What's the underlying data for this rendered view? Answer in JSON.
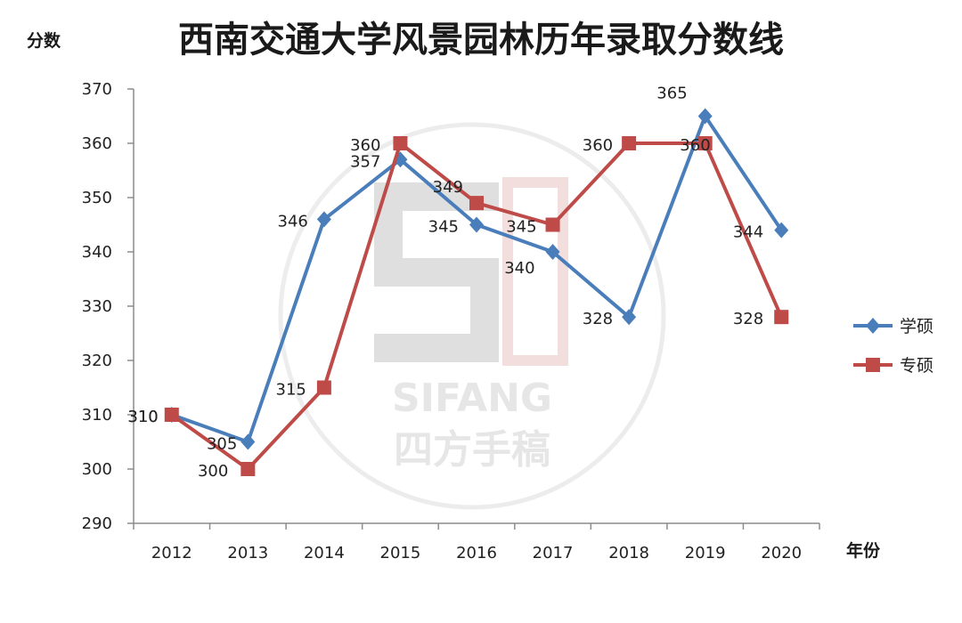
{
  "chart_data": {
    "type": "line",
    "title": "西南交通大学风景园林历年录取分数线",
    "ylabel": "分数",
    "xlabel": "年份",
    "categories": [
      "2012",
      "2013",
      "2014",
      "2015",
      "2016",
      "2017",
      "2018",
      "2019",
      "2020"
    ],
    "ylim": [
      290,
      370
    ],
    "yticks": [
      290,
      300,
      310,
      320,
      330,
      340,
      350,
      360,
      370
    ],
    "grid": false,
    "legend": "right",
    "series": [
      {
        "name": "学硕",
        "color": "#4a7ebb",
        "marker": "diamond",
        "values": [
          310,
          305,
          346,
          357,
          345,
          340,
          328,
          365,
          344
        ]
      },
      {
        "name": "专硕",
        "color": "#be4b48",
        "marker": "square",
        "values": [
          310,
          300,
          315,
          360,
          349,
          345,
          360,
          360,
          328
        ]
      }
    ]
  },
  "watermark": {
    "latin": "SIFANG",
    "cjk": "四方手稿"
  }
}
